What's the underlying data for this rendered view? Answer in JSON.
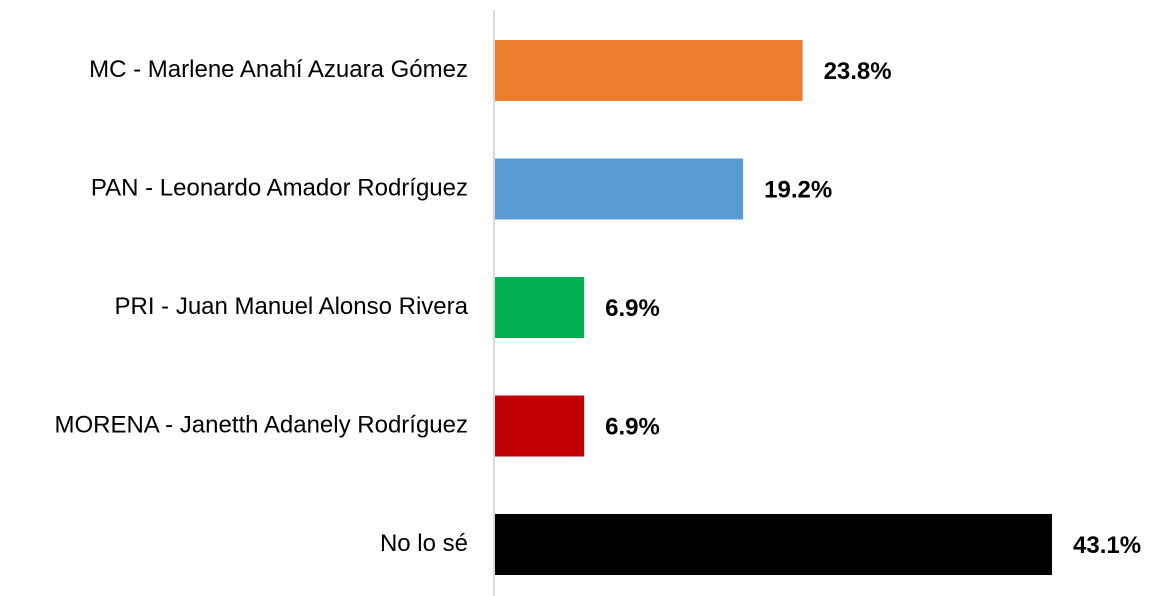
{
  "chart_data": {
    "type": "bar",
    "orientation": "horizontal",
    "title": "",
    "xlabel": "",
    "ylabel": "",
    "categories": [
      "MC - Marlene Anahí Azuara Gómez",
      "PAN - Leonardo Amador Rodríguez",
      "PRI - Juan Manuel Alonso Rivera",
      "MORENA - Janetth Adanely Rodríguez",
      "No lo sé"
    ],
    "values": [
      23.8,
      19.2,
      6.9,
      6.9,
      43.1
    ],
    "value_labels": [
      "23.8%",
      "19.2%",
      "6.9%",
      "6.9%",
      "43.1%"
    ],
    "colors": [
      "#ED7D31",
      "#5B9BD5",
      "#00B050",
      "#C00000",
      "#000000"
    ],
    "axis_color": "#D9D9D9",
    "xlim": [
      0,
      43.1
    ],
    "grid": false,
    "legend": "none"
  }
}
